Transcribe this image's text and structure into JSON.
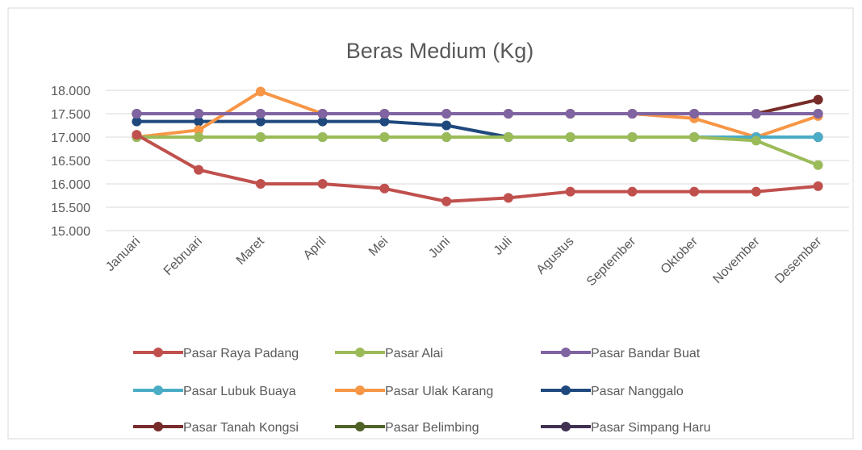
{
  "chart_data": {
    "type": "line",
    "title": "Beras Medium (Kg)",
    "categories": [
      "Januari",
      "Februari",
      "Maret",
      "April",
      "Mei",
      "Juni",
      "Juli",
      "Agustus",
      "September",
      "Oktober",
      "November",
      "Desember"
    ],
    "series": [
      {
        "name": "Pasar Raya Padang",
        "color": "#c0504d",
        "values": [
          17050,
          16300,
          16000,
          16000,
          15900,
          15625,
          15700,
          15833,
          15833,
          15833,
          15833,
          15950
        ]
      },
      {
        "name": "Pasar Alai",
        "color": "#9bbb59",
        "values": [
          17000,
          17000,
          17000,
          17000,
          17000,
          17000,
          17000,
          17000,
          17000,
          17000,
          16925,
          16400
        ]
      },
      {
        "name": "Pasar Bandar Buat",
        "color": "#8064a2",
        "values": [
          17500,
          17500,
          17500,
          17500,
          17500,
          17500,
          17500,
          17500,
          17500,
          17500,
          17500,
          17500
        ]
      },
      {
        "name": "Pasar Lubuk Buaya",
        "color": "#4bacc6",
        "values": [
          17000,
          17000,
          17000,
          17000,
          17000,
          17000,
          17000,
          17000,
          17000,
          17000,
          17000,
          17000
        ]
      },
      {
        "name": "Pasar Ulak Karang",
        "color": "#f79646",
        "values": [
          17000,
          17150,
          17975,
          17500,
          17500,
          17500,
          17500,
          17500,
          17500,
          17400,
          17000,
          17450
        ]
      },
      {
        "name": "Pasar Nanggalo",
        "color": "#1f497d",
        "values": [
          17333,
          17333,
          17333,
          17333,
          17333,
          17250,
          17000,
          17000,
          17000,
          17000,
          17000,
          17000
        ]
      },
      {
        "name": "Pasar Tanah Kongsi",
        "color": "#772c2a",
        "values": [
          17500,
          17500,
          17500,
          17500,
          17500,
          17500,
          17500,
          17500,
          17500,
          17500,
          17500,
          17800
        ]
      },
      {
        "name": "Pasar Belimbing",
        "color": "#4f6228",
        "values": [
          17000,
          17000,
          17000,
          17000,
          17000,
          17000,
          17000,
          17000,
          17000,
          17000,
          17000,
          17000
        ]
      },
      {
        "name": "Pasar Simpang Haru",
        "color": "#403152",
        "values": [
          17500,
          17500,
          17500,
          17500,
          17500,
          17500,
          17500,
          17500,
          17500,
          17500,
          17500,
          17500
        ]
      }
    ],
    "ylim": [
      15000,
      18000
    ],
    "yticks": [
      {
        "value": 15000,
        "label": "15.000"
      },
      {
        "value": 15500,
        "label": "15.500"
      },
      {
        "value": 16000,
        "label": "16.000"
      },
      {
        "value": 16500,
        "label": "16.500"
      },
      {
        "value": 17000,
        "label": "17.000"
      },
      {
        "value": 17500,
        "label": "17.500"
      },
      {
        "value": 18000,
        "label": "18.000"
      }
    ],
    "grid": true,
    "legend": "bottom"
  }
}
